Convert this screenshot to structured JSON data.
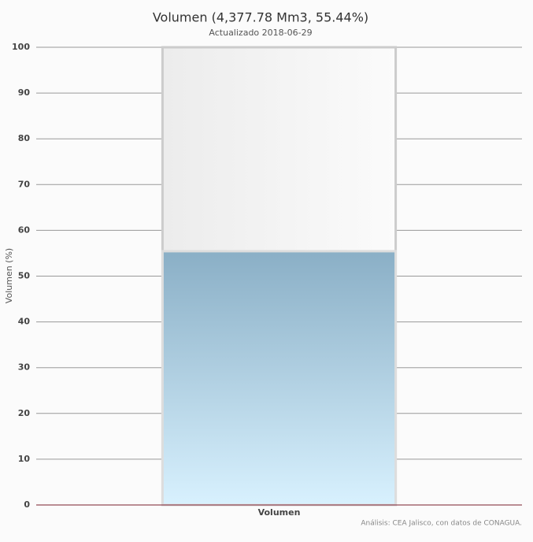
{
  "chart_data": {
    "type": "bar",
    "title": "Volumen (4,377.78 Mm3, 55.44%)",
    "subtitle": "Actualizado 2018-06-29",
    "y_label": "Volumen (%)",
    "categories": [
      "Volumen"
    ],
    "values": [
      55.44
    ],
    "color": "#8aafc6",
    "ylim": [
      0,
      100
    ],
    "yticks": [
      0,
      10,
      20,
      30,
      40,
      50,
      60,
      70,
      80,
      90,
      100
    ],
    "grid": true,
    "credits": "Análisis: CEA Jalisco, con datos de CONAGUA."
  }
}
